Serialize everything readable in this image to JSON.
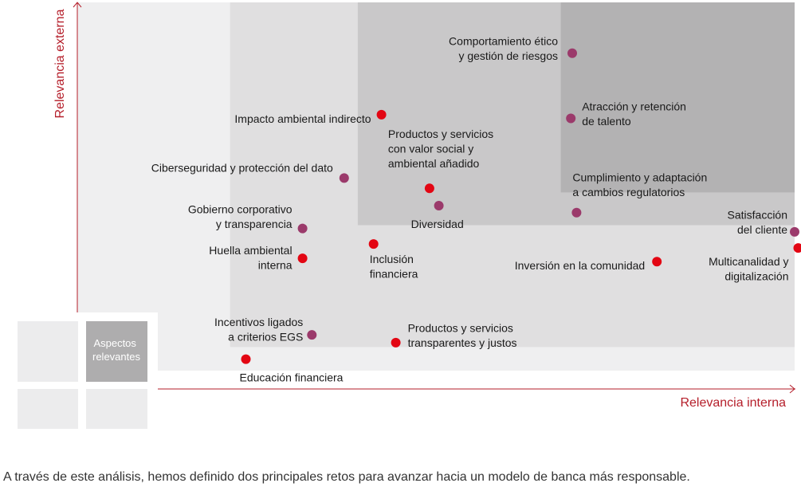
{
  "caption": "A través de este análisis, hemos definido dos principales retos para avanzar hacia un modelo de banca más responsable.",
  "colors": {
    "axis": "#b51e2a",
    "red_dot": "#e30613",
    "purple_dot": "#9b3a6b",
    "band1": "#efeff0",
    "band2": "#e0dfe0",
    "band3": "#c9c8c9",
    "band4": "#b3b2b3",
    "key_light": "#ececed",
    "key_dark": "#aeadae"
  },
  "chart_data": {
    "type": "scatter",
    "title": "",
    "xlabel": "Relevancia interna",
    "ylabel": "Relevancia externa",
    "xlim": [
      0,
      100
    ],
    "ylim": [
      0,
      100
    ],
    "bands": [
      {
        "level": 1,
        "x_min": 0,
        "y_min": 0
      },
      {
        "level": 2,
        "x_min": 21.3,
        "y_min": 6.4
      },
      {
        "level": 3,
        "x_min": 39.1,
        "y_min": 39.5
      },
      {
        "level": 4,
        "x_min": 67.4,
        "y_min": 48.4
      }
    ],
    "legend": {
      "label": "Aspectos relevantes"
    },
    "points": [
      {
        "label": "Comportamiento ético\ny gestión de riesgos",
        "x": 69.0,
        "y": 86.2,
        "series": "purple"
      },
      {
        "label": "Atracción y retención\nde talento",
        "x": 68.8,
        "y": 68.5,
        "series": "purple"
      },
      {
        "label": "Impacto ambiental indirecto",
        "x": 42.4,
        "y": 69.5,
        "series": "red"
      },
      {
        "label": "Ciberseguridad y protección del dato",
        "x": 37.2,
        "y": 52.3,
        "series": "purple"
      },
      {
        "label": "Productos y servicios\ncon valor social y\nambiental añadido",
        "x": 49.1,
        "y": 49.5,
        "series": "red"
      },
      {
        "label": "Diversidad",
        "x": 50.4,
        "y": 44.8,
        "series": "purple"
      },
      {
        "label": "Cumplimiento y adaptación\na cambios regulatorios",
        "x": 69.6,
        "y": 42.9,
        "series": "purple"
      },
      {
        "label": "Satisfacción\ndel cliente",
        "x": 100.0,
        "y": 37.7,
        "series": "purple"
      },
      {
        "label": "Multicanalidad y\ndigitalización",
        "x": 100.5,
        "y": 33.3,
        "series": "red"
      },
      {
        "label": "Gobierno corporativo\ny transparencia",
        "x": 31.4,
        "y": 38.6,
        "series": "purple"
      },
      {
        "label": "Inclusión\nfinanciera",
        "x": 41.3,
        "y": 34.4,
        "series": "red"
      },
      {
        "label": "Huella ambiental\ninterna",
        "x": 31.4,
        "y": 30.5,
        "series": "red"
      },
      {
        "label": "Inversión en la comunidad",
        "x": 80.8,
        "y": 29.6,
        "series": "red"
      },
      {
        "label": "Incentivos ligados\na criterios EGS",
        "x": 32.7,
        "y": 9.7,
        "series": "purple"
      },
      {
        "label": "Productos y servicios\ntransparentes y justos",
        "x": 44.4,
        "y": 7.6,
        "series": "red"
      },
      {
        "label": "Educación financiera",
        "x": 23.5,
        "y": 3.1,
        "series": "red"
      }
    ]
  }
}
